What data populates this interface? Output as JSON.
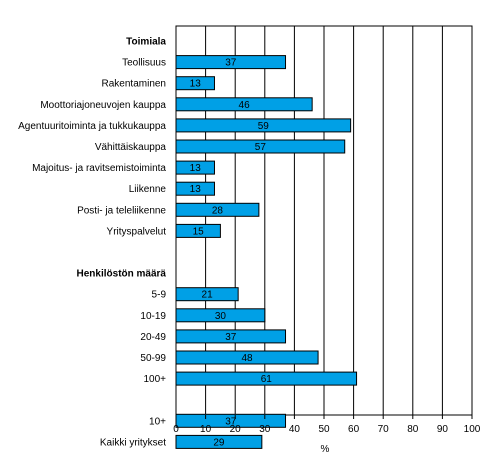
{
  "chart_data": {
    "type": "bar",
    "orientation": "horizontal",
    "xlabel": "%",
    "xlim": [
      0,
      100
    ],
    "xticks": [
      0,
      10,
      20,
      30,
      40,
      50,
      60,
      70,
      80,
      90,
      100
    ],
    "grid": true,
    "bar_color": "#00a0e6",
    "rows": [
      {
        "kind": "header",
        "label": "Toimiala"
      },
      {
        "kind": "bar",
        "label": "Teollisuus",
        "value": 37
      },
      {
        "kind": "bar",
        "label": "Rakentaminen",
        "value": 13
      },
      {
        "kind": "bar",
        "label": "Moottoriajoneuvojen kauppa",
        "value": 46
      },
      {
        "kind": "bar",
        "label": "Agentuuritoiminta ja tukkukauppa",
        "value": 59
      },
      {
        "kind": "bar",
        "label": "Vähittäiskauppa",
        "value": 57
      },
      {
        "kind": "bar",
        "label": "Majoitus- ja ravitsemistoiminta",
        "value": 13
      },
      {
        "kind": "bar",
        "label": "Liikenne",
        "value": 13
      },
      {
        "kind": "bar",
        "label": "Posti- ja teleliikenne",
        "value": 28
      },
      {
        "kind": "bar",
        "label": "Yrityspalvelut",
        "value": 15
      },
      {
        "kind": "blank",
        "label": ""
      },
      {
        "kind": "header",
        "label": "Henkilöstön määrä"
      },
      {
        "kind": "bar",
        "label": "5-9",
        "value": 21
      },
      {
        "kind": "bar",
        "label": "10-19",
        "value": 30
      },
      {
        "kind": "bar",
        "label": "20-49",
        "value": 37
      },
      {
        "kind": "bar",
        "label": "50-99",
        "value": 48
      },
      {
        "kind": "bar",
        "label": "100+",
        "value": 61
      },
      {
        "kind": "blank",
        "label": ""
      },
      {
        "kind": "bar",
        "label": "10+",
        "value": 37
      },
      {
        "kind": "bar",
        "label": "Kaikki yritykset",
        "value": 29
      }
    ]
  }
}
